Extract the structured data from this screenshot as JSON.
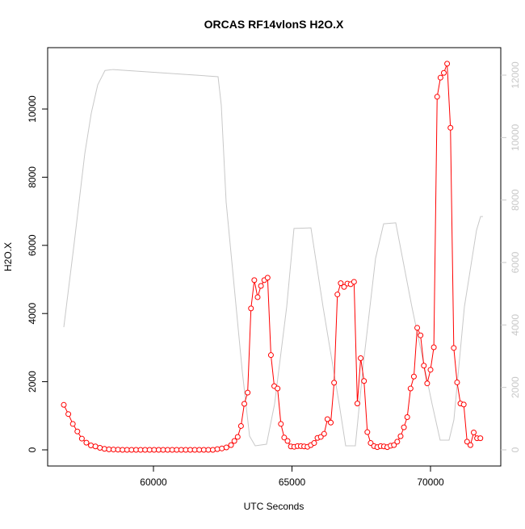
{
  "chart_data": {
    "type": "line",
    "title": "ORCAS RF14vlonS H2O.X",
    "x_label": "UTC Seconds",
    "y_label": "H2O.X",
    "xlim": [
      56181,
      72536
    ],
    "ylim": [
      -474,
      11801
    ],
    "y2lim": [
      -517,
      12880
    ],
    "xticks": [
      60000,
      65000,
      70000
    ],
    "yticks": [
      0,
      2000,
      4000,
      6000,
      8000,
      10000
    ],
    "y2ticks": [
      0,
      2000,
      4000,
      6000,
      8000,
      10000,
      12000
    ],
    "series": [
      {
        "color": "#ff0000",
        "marker": "circle",
        "x": [
          56764,
          56927,
          57090,
          57253,
          57416,
          57579,
          57742,
          57905,
          58068,
          58231,
          58394,
          58557,
          58720,
          58883,
          59046,
          59209,
          59372,
          59535,
          59698,
          59861,
          60024,
          60187,
          60350,
          60513,
          60676,
          60839,
          61002,
          61165,
          61328,
          61491,
          61654,
          61817,
          61980,
          62143,
          62306,
          62469,
          62632,
          62800,
          62920,
          63040,
          63160,
          63280,
          63400,
          63520,
          63640,
          63760,
          63880,
          64000,
          64120,
          64240,
          64360,
          64480,
          64600,
          64720,
          64840,
          64960,
          65080,
          65200,
          65320,
          65440,
          65560,
          65680,
          65800,
          65920,
          66040,
          66160,
          66280,
          66400,
          66520,
          66640,
          66760,
          66880,
          67000,
          67120,
          67240,
          67360,
          67480,
          67600,
          67720,
          67840,
          67960,
          68080,
          68200,
          68320,
          68440,
          68560,
          68680,
          68800,
          68920,
          69040,
          69160,
          69280,
          69400,
          69520,
          69640,
          69760,
          69880,
          70000,
          70120,
          70240,
          70360,
          70480,
          70600,
          70720,
          70840,
          70960,
          71080,
          71200,
          71320,
          71440,
          71560,
          71680,
          71800
        ],
        "values": [
          1320,
          1050,
          760,
          540,
          330,
          210,
          130,
          100,
          60,
          30,
          15,
          10,
          5,
          0,
          0,
          0,
          0,
          0,
          0,
          0,
          0,
          0,
          0,
          0,
          0,
          0,
          0,
          0,
          0,
          0,
          0,
          0,
          0,
          0,
          20,
          40,
          70,
          140,
          260,
          380,
          700,
          1350,
          1680,
          4150,
          4980,
          4480,
          4810,
          4980,
          5050,
          2780,
          1870,
          1800,
          760,
          360,
          260,
          100,
          90,
          110,
          110,
          100,
          90,
          140,
          200,
          350,
          380,
          470,
          900,
          800,
          1970,
          4560,
          4890,
          4780,
          4880,
          4860,
          4930,
          1360,
          2690,
          2020,
          520,
          200,
          110,
          80,
          110,
          100,
          80,
          120,
          140,
          240,
          400,
          660,
          960,
          1800,
          2150,
          3580,
          3360,
          2470,
          1950,
          2350,
          3010,
          10360,
          10920,
          11060,
          11330,
          9450,
          2990,
          1980,
          1360,
          1330,
          240,
          140,
          510,
          340,
          340
        ]
      },
      {
        "color": "#c8c8c8",
        "axis": "y2",
        "x": [
          56764,
          57143,
          57522,
          57755,
          57988,
          58251,
          58542,
          62332,
          62448,
          62623,
          63206,
          63469,
          63673,
          64081,
          64372,
          64809,
          65072,
          65684,
          66121,
          66704,
          66938,
          67287,
          67579,
          68016,
          68308,
          68745,
          69328,
          70057,
          70348,
          70669,
          70844,
          71223,
          71660,
          71806,
          71893
        ],
        "values": [
          3930,
          6650,
          9490,
          10780,
          11690,
          12150,
          12180,
          11950,
          11040,
          7940,
          2510,
          440,
          130,
          180,
          1470,
          4580,
          7090,
          7110,
          4580,
          1470,
          130,
          130,
          2770,
          6130,
          7240,
          7270,
          4580,
          1470,
          310,
          310,
          960,
          4580,
          7030,
          7470,
          7470
        ]
      }
    ]
  }
}
